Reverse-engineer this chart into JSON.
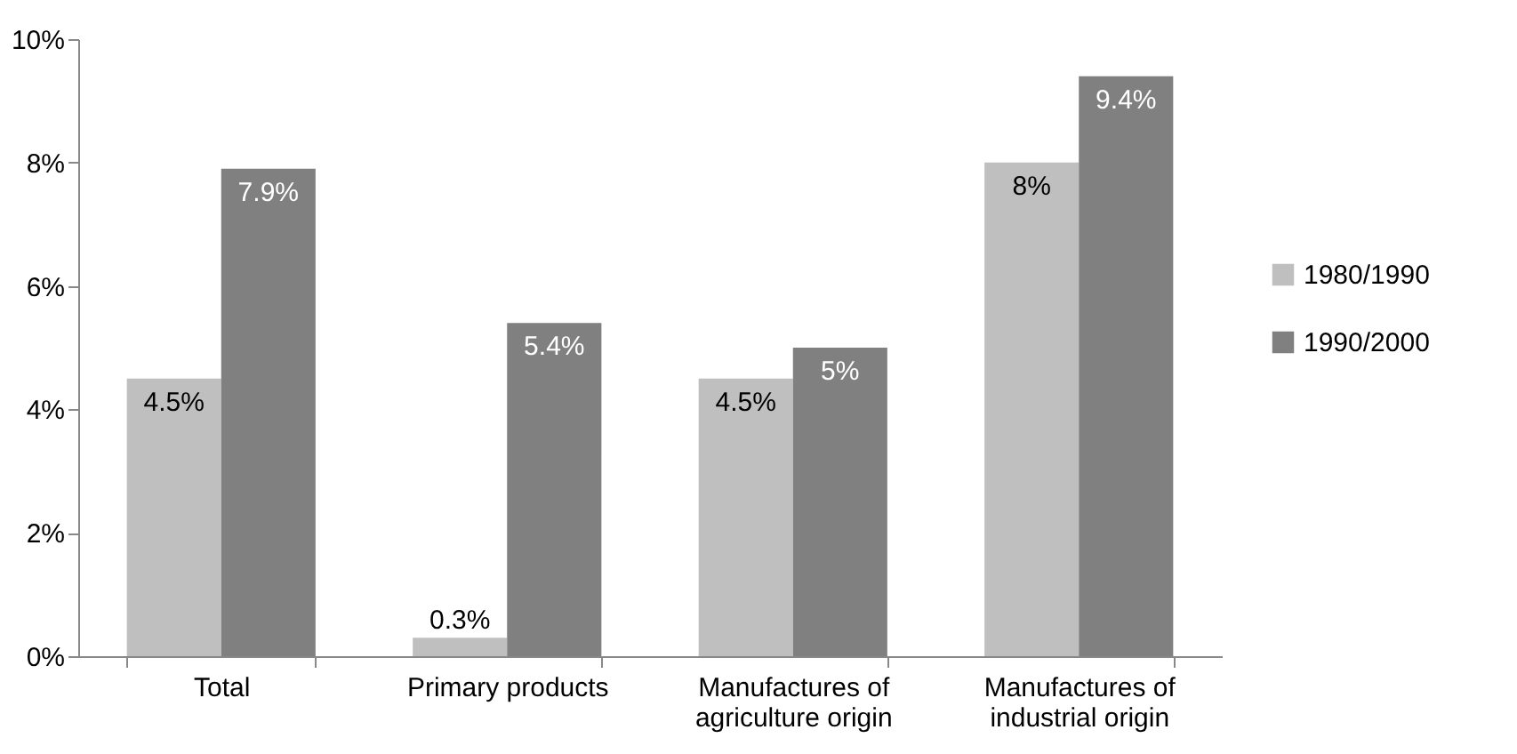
{
  "chart_data": {
    "type": "bar",
    "categories": [
      "Total",
      "Primary products",
      "Manufactures of agriculture origin",
      "Manufactures of industrial origin"
    ],
    "series": [
      {
        "name": "1980/1990",
        "color": "#bfbfbf",
        "values": [
          4.5,
          0.3,
          4.5,
          8
        ],
        "value_labels": [
          "4.5%",
          "0.3%",
          "4.5%",
          "8%"
        ]
      },
      {
        "name": "1990/2000",
        "color": "#808080",
        "values": [
          7.9,
          5.4,
          5,
          9.4
        ],
        "value_labels": [
          "7.9%",
          "5.4%",
          "5%",
          "9.4%"
        ]
      }
    ],
    "ylim": [
      0,
      10
    ],
    "yticks": [
      {
        "value": 0,
        "label": "0%"
      },
      {
        "value": 2,
        "label": "2%"
      },
      {
        "value": 4,
        "label": "4%"
      },
      {
        "value": 6,
        "label": "6%"
      },
      {
        "value": 8,
        "label": "8%"
      },
      {
        "value": 10,
        "label": "10%"
      }
    ],
    "grid": false,
    "legend": "right"
  }
}
